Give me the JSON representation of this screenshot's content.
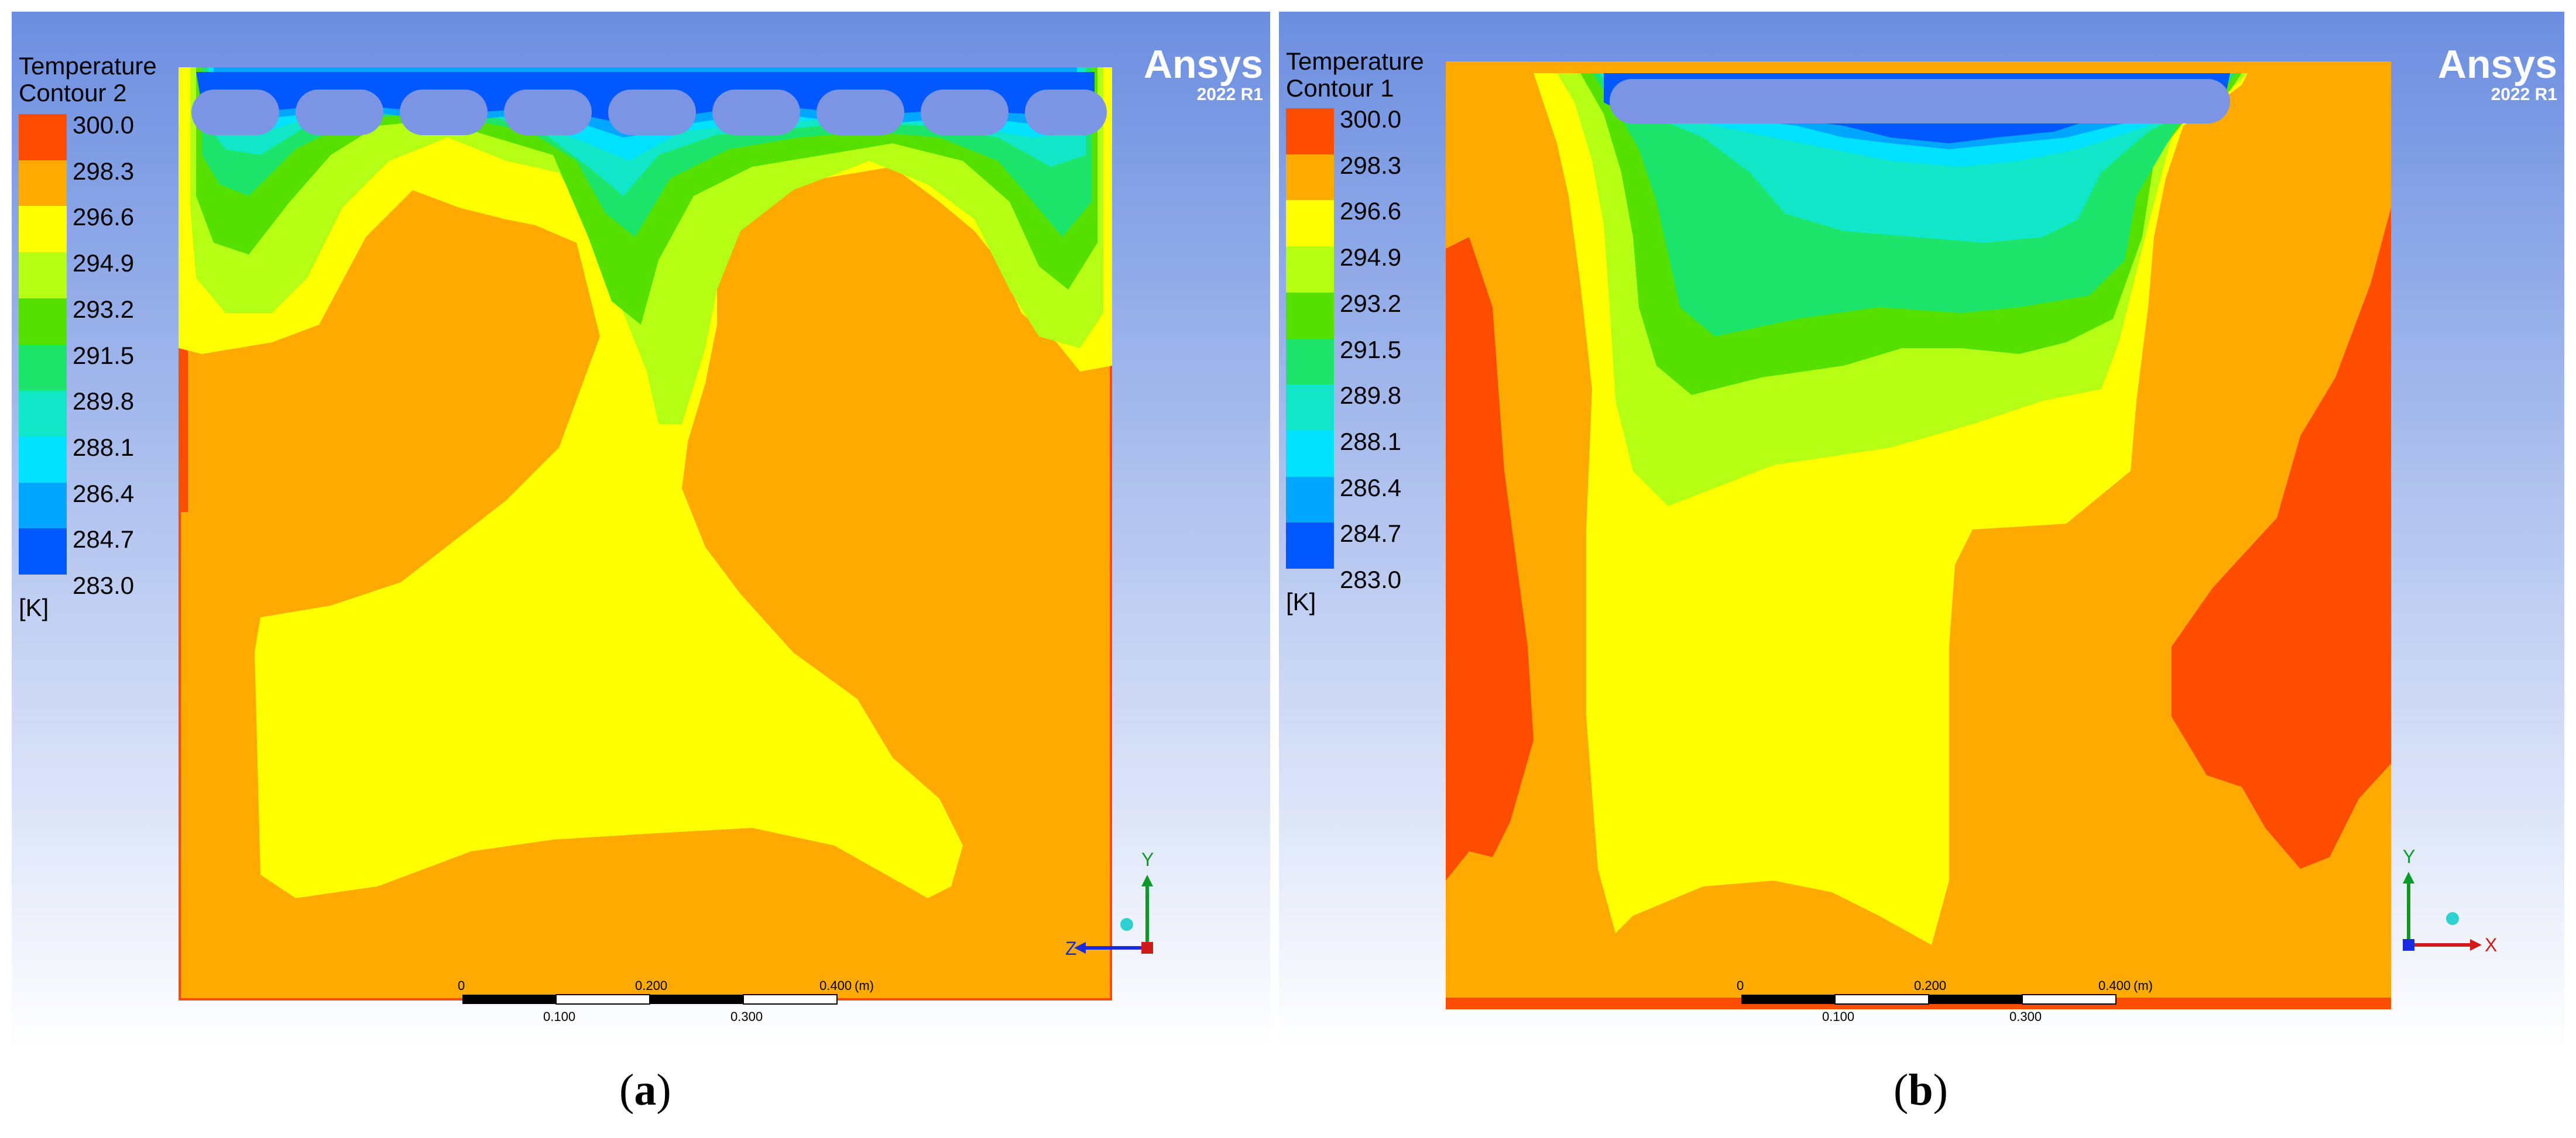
{
  "colors": {
    "bg_top": "#6b8ee0",
    "bg_bottom": "#ffffff",
    "t300": "#ff4d00",
    "t298": "#ffaa00",
    "t296": "#ffff00",
    "t294": "#b5ff14",
    "t293": "#55e000",
    "t291": "#1de56a",
    "t289": "#11e6c8",
    "t288": "#00e0ff",
    "t286": "#00a6ff",
    "t284": "#0059ff",
    "inlet": "#7b94e3"
  },
  "legend_colors": [
    "#ff4d00",
    "#ffaa00",
    "#ffff00",
    "#b5ff14",
    "#55e000",
    "#1de56a",
    "#11e6c8",
    "#00e0ff",
    "#00a6ff",
    "#0059ff"
  ],
  "panels": [
    {
      "title_line1": "Temperature",
      "title_line2": "Contour 2",
      "legend_labels": [
        "300.0",
        "298.3",
        "296.6",
        "294.9",
        "293.2",
        "291.5",
        "289.8",
        "288.1",
        "286.4",
        "284.7",
        "283.0"
      ],
      "unit": "[K]",
      "brand": "Ansys",
      "version": "2022 R1",
      "axis_up": "Y",
      "axis_side": "Z",
      "scale_top": [
        "0",
        "0.200",
        "0.400",
        "(m)"
      ],
      "scale_bottom": [
        "0.100",
        "0.300"
      ],
      "caption_letter": "a"
    },
    {
      "title_line1": "Temperature",
      "title_line2": "Contour 1",
      "legend_labels": [
        "300.0",
        "298.3",
        "296.6",
        "294.9",
        "293.2",
        "291.5",
        "289.8",
        "288.1",
        "286.4",
        "284.7",
        "283.0"
      ],
      "unit": "[K]",
      "brand": "Ansys",
      "version": "2022 R1",
      "axis_up": "Y",
      "axis_side": "X",
      "scale_top": [
        "0",
        "0.200",
        "0.400",
        "(m)"
      ],
      "scale_bottom": [
        "0.100",
        "0.300"
      ],
      "caption_letter": "b"
    }
  ],
  "chart_data": [
    {
      "type": "heatmap",
      "title": "Temperature Contour 2",
      "colorbar_unit": "[K]",
      "colorbar_range": [
        283.0,
        300.0
      ],
      "colorbar_ticks": [
        300.0,
        298.3,
        296.6,
        294.9,
        293.2,
        291.5,
        289.8,
        288.1,
        286.4,
        284.7,
        283.0
      ],
      "scale_bar_m": [
        0,
        0.1,
        0.2,
        0.3,
        0.4
      ],
      "view_axes": [
        "Y",
        "Z"
      ],
      "caption": "(a)"
    },
    {
      "type": "heatmap",
      "title": "Temperature Contour 1",
      "colorbar_unit": "[K]",
      "colorbar_range": [
        283.0,
        300.0
      ],
      "colorbar_ticks": [
        300.0,
        298.3,
        296.6,
        294.9,
        293.2,
        291.5,
        289.8,
        288.1,
        286.4,
        284.7,
        283.0
      ],
      "scale_bar_m": [
        0,
        0.1,
        0.2,
        0.3,
        0.4
      ],
      "view_axes": [
        "Y",
        "X"
      ],
      "caption": "(b)"
    }
  ]
}
